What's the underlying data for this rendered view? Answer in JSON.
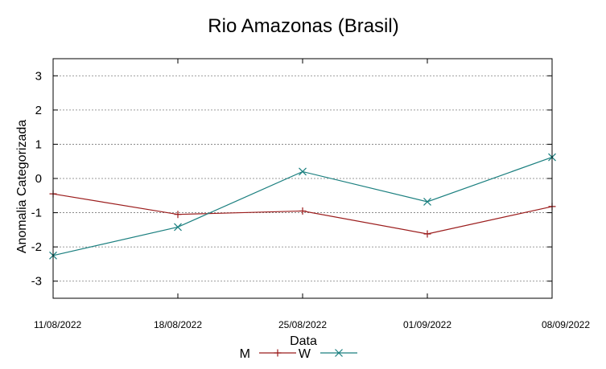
{
  "chart_data": {
    "type": "line",
    "title": "Rio Amazonas (Brasil)",
    "xlabel": "Data",
    "ylabel": "Anomalia Categorizada",
    "categories": [
      "11/08/2022",
      "18/08/2022",
      "25/08/2022",
      "01/09/2022",
      "08/09/2022"
    ],
    "y_ticks": [
      3,
      2,
      1,
      0,
      -1,
      -2,
      -3
    ],
    "y_tick_labels": [
      "3",
      "2",
      "1",
      "0",
      "-1",
      "-2",
      "-3"
    ],
    "ylim": [
      -3.5,
      3.5
    ],
    "grid": true,
    "legend_position": "bottom-center",
    "series": [
      {
        "name": "M",
        "color": "#9b1c1c",
        "marker": "plus",
        "values": [
          -0.45,
          -1.05,
          -0.95,
          -1.62,
          -0.82
        ]
      },
      {
        "name": "W",
        "color": "#1a7f7f",
        "marker": "cross",
        "values": [
          -2.25,
          -1.42,
          0.2,
          -0.68,
          0.62
        ]
      }
    ]
  }
}
